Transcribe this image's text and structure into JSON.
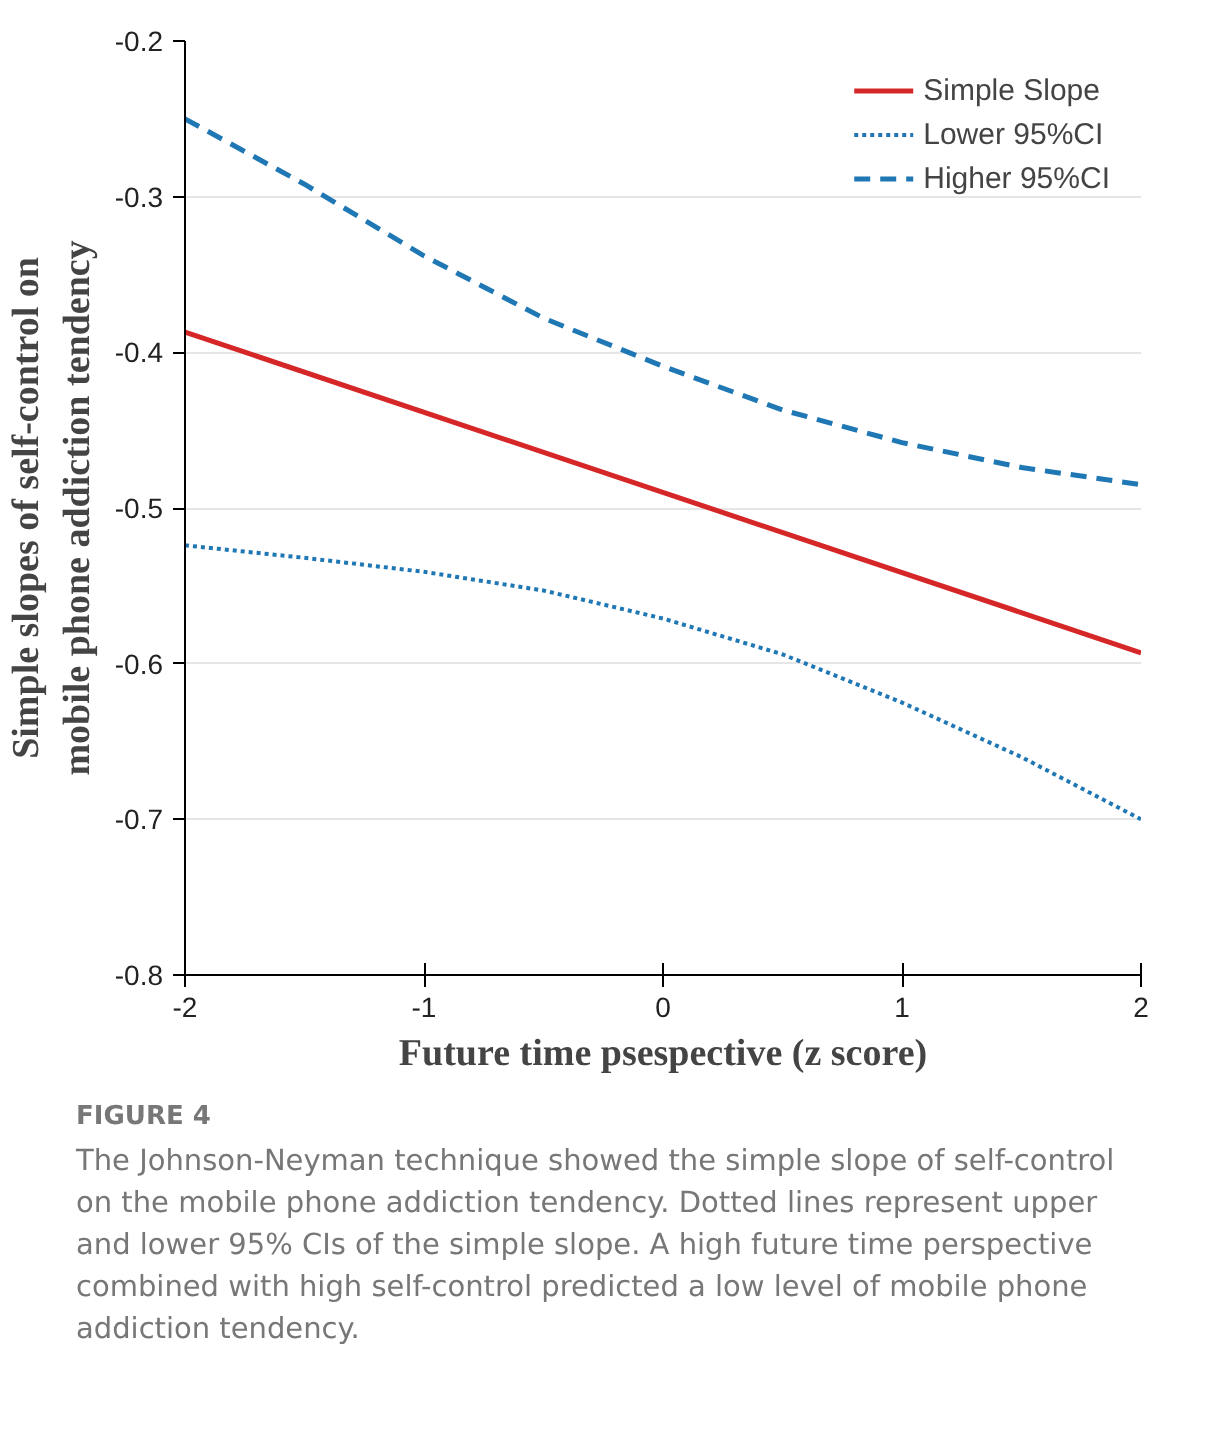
{
  "chart_data": {
    "type": "line",
    "xlabel": "Future time psespective (z score)",
    "ylabel": "Simple slopes of self-control on mobile phone addiction tendency",
    "x": [
      -2,
      -1.5,
      -1,
      -0.5,
      0,
      0.5,
      1,
      1.5,
      2
    ],
    "series": [
      {
        "name": "Simple Slope",
        "color": "#d62728",
        "line_style": "solid",
        "x": [
          -2,
          2
        ],
        "values": [
          -0.387,
          -0.593
        ]
      },
      {
        "name": "Lower 95%CI",
        "color": "#1f77b4",
        "line_style": "dotted",
        "values": [
          -0.524,
          -0.532,
          -0.541,
          -0.553,
          -0.571,
          -0.594,
          -0.625,
          -0.66,
          -0.7
        ]
      },
      {
        "name": "Higher 95%CI",
        "color": "#1f77b4",
        "line_style": "dashed",
        "values": [
          -0.25,
          -0.292,
          -0.338,
          -0.378,
          -0.409,
          -0.437,
          -0.458,
          -0.474,
          -0.485
        ]
      }
    ],
    "xlim": [
      -2,
      2
    ],
    "xticks": [
      -2,
      -1,
      0,
      1,
      2
    ],
    "ylim": [
      -0.8,
      -0.2
    ],
    "yticks": [
      -0.8,
      -0.7,
      -0.6,
      -0.5,
      -0.4,
      -0.3,
      -0.2
    ],
    "grid": "y",
    "legend": "top right",
    "annotations": [
      "FIGURE 4",
      "The Johnson-Neyman technique showed the simple slope of self-control on the mobile phone addiction tendency. Dotted lines represent upper and lower 95% CIs of the simple slope. A high future time perspective combined with high self-control predicted a low level of mobile phone addiction tendency."
    ]
  }
}
